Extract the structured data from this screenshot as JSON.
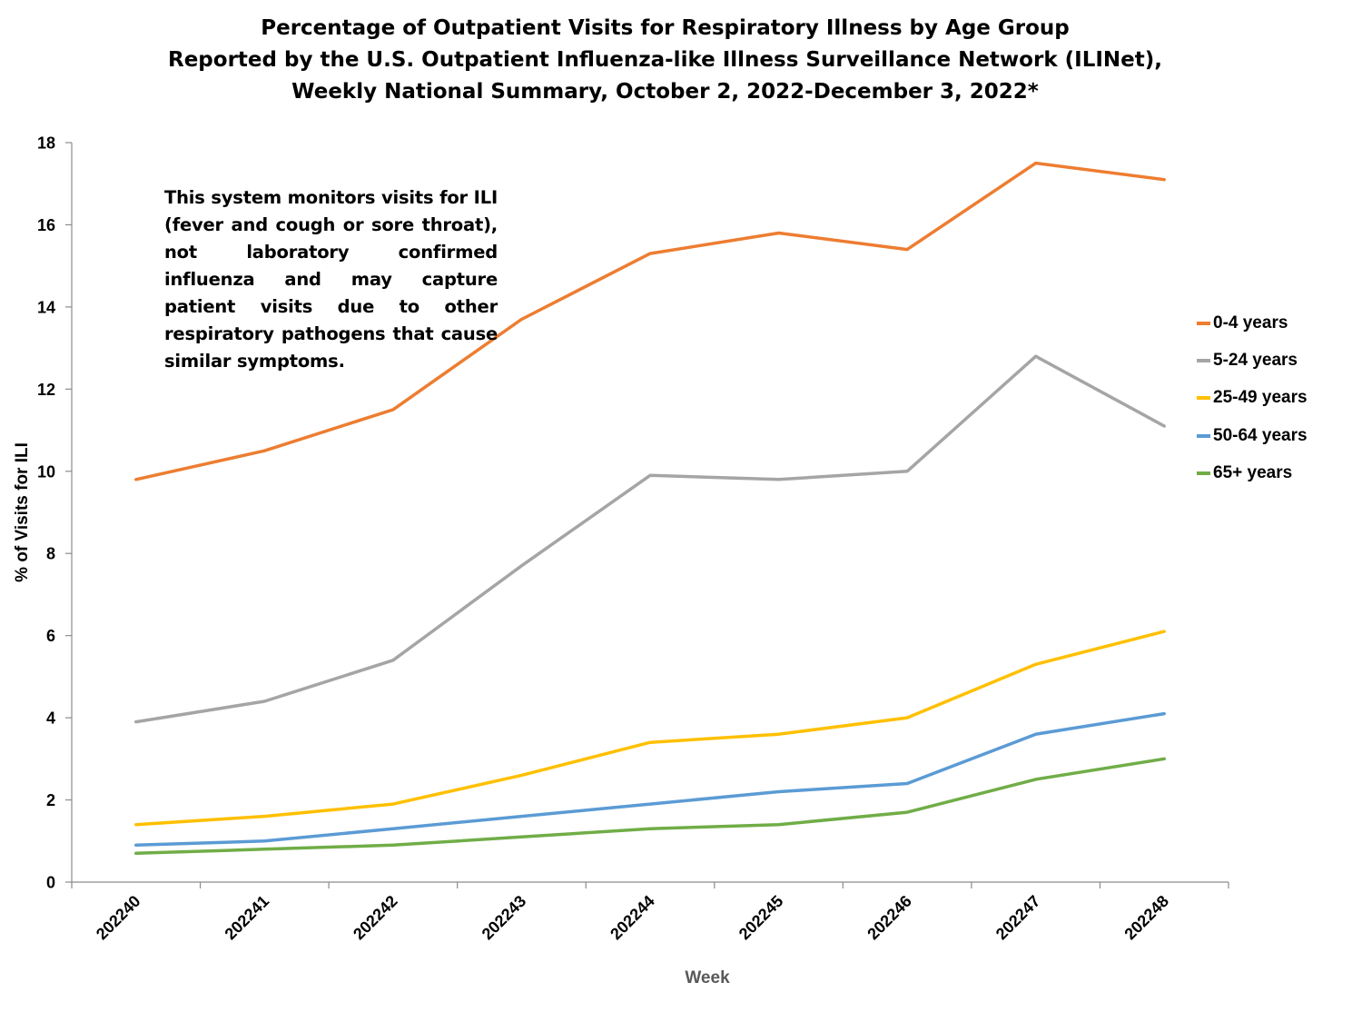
{
  "chart_data": {
    "type": "line",
    "title": [
      "Percentage of Outpatient Visits for Respiratory Illness by Age Group",
      "Reported by the U.S. Outpatient Influenza-like Illness Surveillance Network (ILINet),",
      "Weekly National Summary, October 2, 2022-December 3, 2022*"
    ],
    "xlabel": "Week",
    "ylabel": "% of Visits for ILI",
    "x": [
      "202240",
      "202241",
      "202242",
      "202243",
      "202244",
      "202245",
      "202246",
      "202247",
      "202248"
    ],
    "ylim": [
      0,
      18
    ],
    "yticks": [
      0,
      2,
      4,
      6,
      8,
      10,
      12,
      14,
      16,
      18
    ],
    "grid": false,
    "legend_position": "right",
    "annotation": "This system monitors visits for ILI (fever and cough or sore throat), not laboratory confirmed influenza and may capture patient visits due to other respiratory pathogens that cause similar symptoms.",
    "series": [
      {
        "name": "0-4 years",
        "color": "#ED7D31",
        "values": [
          9.8,
          10.5,
          11.5,
          13.7,
          15.3,
          15.8,
          15.4,
          17.5,
          17.1
        ]
      },
      {
        "name": "5-24 years",
        "color": "#A5A5A5",
        "values": [
          3.9,
          4.4,
          5.4,
          7.7,
          9.9,
          9.8,
          10.0,
          12.8,
          11.1
        ]
      },
      {
        "name": "25-49 years",
        "color": "#FFC000",
        "values": [
          1.4,
          1.6,
          1.9,
          2.6,
          3.4,
          3.6,
          4.0,
          5.3,
          6.1
        ]
      },
      {
        "name": "50-64 years",
        "color": "#5B9BD5",
        "values": [
          0.9,
          1.0,
          1.3,
          1.6,
          1.9,
          2.2,
          2.4,
          3.6,
          4.1
        ]
      },
      {
        "name": "65+ years",
        "color": "#70AD47",
        "values": [
          0.7,
          0.8,
          0.9,
          1.1,
          1.3,
          1.4,
          1.7,
          2.5,
          3.0
        ]
      }
    ]
  }
}
